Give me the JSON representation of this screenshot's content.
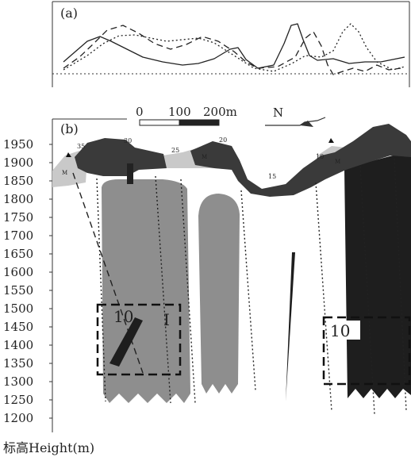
{
  "panel_a": {
    "label": "(a)",
    "curves": [
      {
        "style": "solid",
        "points": [
          [
            80,
            78
          ],
          [
            95,
            65
          ],
          [
            110,
            52
          ],
          [
            126,
            46
          ],
          [
            140,
            52
          ],
          [
            160,
            62
          ],
          [
            180,
            72
          ],
          [
            205,
            78
          ],
          [
            230,
            82
          ],
          [
            250,
            80
          ],
          [
            270,
            74
          ],
          [
            290,
            62
          ],
          [
            300,
            60
          ],
          [
            310,
            75
          ],
          [
            325,
            86
          ],
          [
            345,
            82
          ],
          [
            358,
            55
          ],
          [
            367,
            32
          ],
          [
            375,
            30
          ],
          [
            382,
            50
          ],
          [
            390,
            70
          ],
          [
            400,
            76
          ],
          [
            420,
            74
          ],
          [
            440,
            80
          ],
          [
            460,
            78
          ],
          [
            480,
            78
          ],
          [
            500,
            74
          ],
          [
            510,
            72
          ]
        ]
      },
      {
        "style": "dashed",
        "points": [
          [
            80,
            86
          ],
          [
            100,
            72
          ],
          [
            118,
            55
          ],
          [
            135,
            38
          ],
          [
            155,
            32
          ],
          [
            175,
            42
          ],
          [
            195,
            55
          ],
          [
            215,
            62
          ],
          [
            235,
            56
          ],
          [
            255,
            46
          ],
          [
            275,
            52
          ],
          [
            295,
            65
          ],
          [
            310,
            78
          ],
          [
            325,
            86
          ],
          [
            350,
            84
          ],
          [
            372,
            72
          ],
          [
            385,
            48
          ],
          [
            395,
            40
          ],
          [
            405,
            58
          ],
          [
            413,
            82
          ],
          [
            420,
            94
          ],
          [
            432,
            90
          ],
          [
            445,
            86
          ],
          [
            460,
            90
          ],
          [
            475,
            82
          ],
          [
            490,
            88
          ],
          [
            505,
            86
          ]
        ]
      },
      {
        "style": "dotted",
        "points": [
          [
            80,
            88
          ],
          [
            110,
            70
          ],
          [
            130,
            55
          ],
          [
            150,
            45
          ],
          [
            170,
            44
          ],
          [
            190,
            48
          ],
          [
            210,
            52
          ],
          [
            230,
            50
          ],
          [
            250,
            48
          ],
          [
            270,
            54
          ],
          [
            295,
            70
          ],
          [
            320,
            86
          ],
          [
            345,
            90
          ],
          [
            368,
            80
          ],
          [
            385,
            70
          ],
          [
            405,
            72
          ],
          [
            420,
            64
          ],
          [
            432,
            40
          ],
          [
            442,
            30
          ],
          [
            452,
            40
          ],
          [
            462,
            60
          ],
          [
            475,
            78
          ],
          [
            495,
            88
          ],
          [
            510,
            84
          ]
        ]
      }
    ]
  },
  "scale_bar": {
    "labels": [
      "0",
      "100",
      "200m"
    ]
  },
  "north": {
    "label": "N"
  },
  "panel_b": {
    "label": "(b)",
    "y_ticks": [
      "1950",
      "1900",
      "1850",
      "1800",
      "1750",
      "1700",
      "1650",
      "1600",
      "1550",
      "1500",
      "1450",
      "1400",
      "1350",
      "1300",
      "1250",
      "1200"
    ],
    "surface_labels": [
      "35",
      "30",
      "25",
      "20",
      "15",
      "10",
      "M",
      "M",
      "M"
    ],
    "box_labels": [
      "10",
      "I",
      "10"
    ]
  },
  "axis_title": "标高Height(m)",
  "colors": {
    "dark_band": "#3a3a3a",
    "orebody_gray": "#8e8e8e",
    "orebody_dark": "#1e1e1e",
    "light_band": "#c9c9c9"
  }
}
